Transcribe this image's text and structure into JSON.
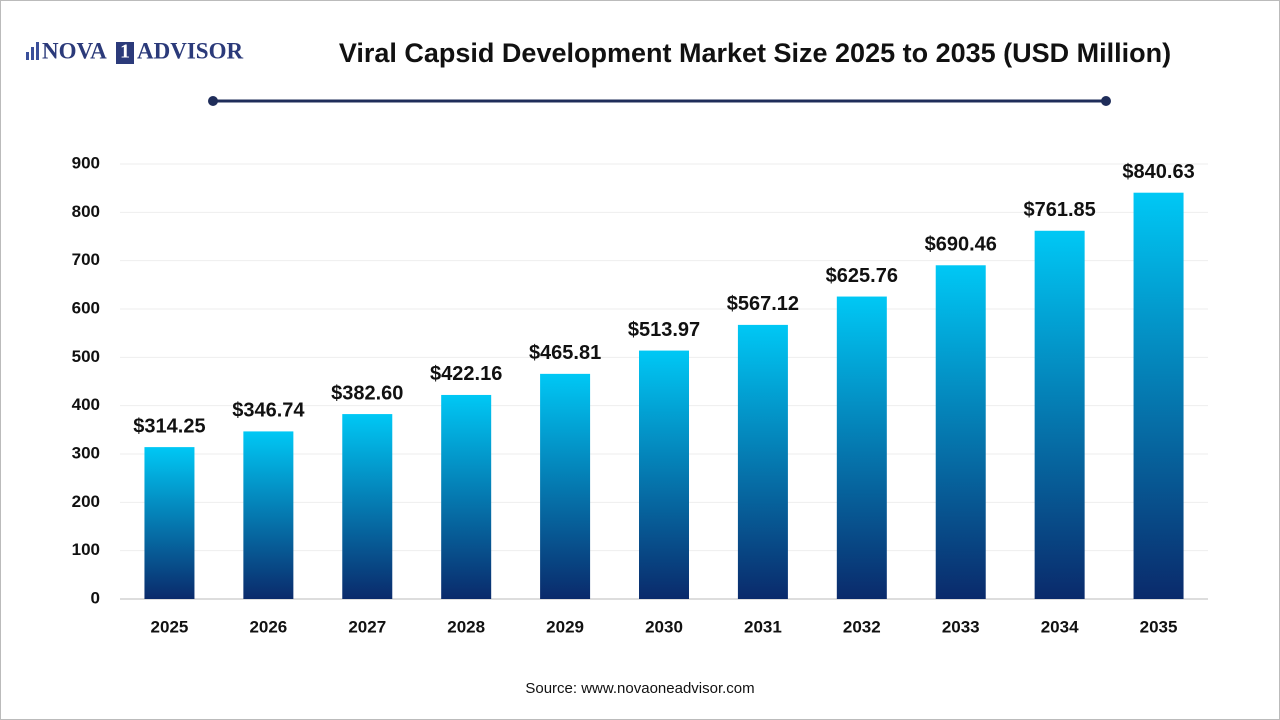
{
  "logo": {
    "left": "NOVA",
    "mark": "1",
    "right": "ADVISOR"
  },
  "chart_data": {
    "type": "bar",
    "title": "Viral Capsid Development Market Size 2025 to 2035 (USD Million)",
    "categories": [
      "2025",
      "2026",
      "2027",
      "2028",
      "2029",
      "2030",
      "2031",
      "2032",
      "2033",
      "2034",
      "2035"
    ],
    "values": [
      314.25,
      346.74,
      382.6,
      422.16,
      465.81,
      513.97,
      567.12,
      625.76,
      690.46,
      761.85,
      840.63
    ],
    "value_labels": [
      "$314.25",
      "$346.74",
      "$382.60",
      "$422.16",
      "$465.81",
      "$513.97",
      "$567.12",
      "$625.76",
      "$690.46",
      "$761.85",
      "$840.63"
    ],
    "color": "#00c8f5",
    "gradient_color": "#0a2a6b",
    "ylim": [
      0,
      900
    ],
    "yticks": [
      0,
      100,
      200,
      300,
      400,
      500,
      600,
      700,
      800,
      900
    ],
    "grid": true,
    "source": "Source: www.novaoneadvisor.com"
  }
}
